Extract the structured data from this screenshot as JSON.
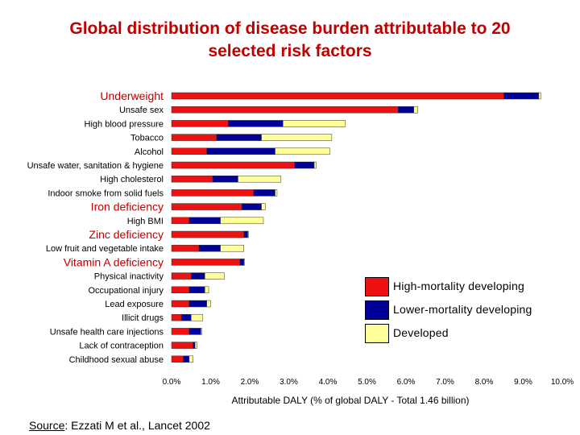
{
  "page": {
    "title_line1": "Global distribution of disease burden attributable to 20",
    "title_line2": "selected risk factors",
    "source_label": "Source",
    "source_text": ":  Ezzati M et al., Lancet 2002"
  },
  "chart_data": {
    "type": "bar",
    "orientation": "horizontal",
    "stacked": true,
    "title": "Global distribution of disease burden attributable to 20 selected risk factors",
    "xlabel": "Attributable DALY (% of global DALY - Total 1.46 billion)",
    "ylabel": "",
    "xlim": [
      0,
      10
    ],
    "x_ticks": [
      "0.0%",
      "1.0%",
      "2.0%",
      "3.0%",
      "4.0%",
      "5.0%",
      "6.0%",
      "7.0%",
      "8.0%",
      "9.0%",
      "10.0%"
    ],
    "grid": false,
    "legend_position": "right",
    "categories": [
      {
        "label": "Underweight",
        "highlight": true
      },
      {
        "label": "Unsafe sex",
        "highlight": false
      },
      {
        "label": "High blood pressure",
        "highlight": false
      },
      {
        "label": "Tobacco",
        "highlight": false
      },
      {
        "label": "Alcohol",
        "highlight": false
      },
      {
        "label": "Unsafe water, sanitation & hygiene",
        "highlight": false
      },
      {
        "label": "High cholesterol",
        "highlight": false
      },
      {
        "label": "Indoor smoke from solid fuels",
        "highlight": false
      },
      {
        "label": "Iron deficiency",
        "highlight": true
      },
      {
        "label": "High BMI",
        "highlight": false
      },
      {
        "label": "Zinc deficiency",
        "highlight": true
      },
      {
        "label": "Low fruit and vegetable intake",
        "highlight": false
      },
      {
        "label": "Vitamin A deficiency",
        "highlight": true
      },
      {
        "label": "Physical inactivity",
        "highlight": false
      },
      {
        "label": "Occupational injury",
        "highlight": false
      },
      {
        "label": "Lead exposure",
        "highlight": false
      },
      {
        "label": "Illicit drugs",
        "highlight": false
      },
      {
        "label": "Unsafe health care injections",
        "highlight": false
      },
      {
        "label": "Lack of contraception",
        "highlight": false
      },
      {
        "label": "Childhood sexual abuse",
        "highlight": false
      }
    ],
    "series": [
      {
        "name": "High-mortality developing",
        "color": "#ee1111",
        "values": [
          8.5,
          5.8,
          1.45,
          1.15,
          0.9,
          3.15,
          1.05,
          2.1,
          1.8,
          0.45,
          1.85,
          0.7,
          1.75,
          0.5,
          0.45,
          0.45,
          0.25,
          0.45,
          0.55,
          0.3
        ]
      },
      {
        "name": "Lower-mortality developing",
        "color": "#000099",
        "values": [
          0.9,
          0.4,
          1.4,
          1.15,
          1.75,
          0.5,
          0.65,
          0.55,
          0.5,
          0.8,
          0.1,
          0.55,
          0.1,
          0.35,
          0.4,
          0.45,
          0.25,
          0.3,
          0.05,
          0.15
        ]
      },
      {
        "name": "Developed",
        "color": "#ffff99",
        "values": [
          0.05,
          0.1,
          1.6,
          1.8,
          1.4,
          0.05,
          1.1,
          0.05,
          0.1,
          1.1,
          0.02,
          0.6,
          0.02,
          0.5,
          0.1,
          0.1,
          0.3,
          0.02,
          0.05,
          0.1
        ]
      }
    ]
  }
}
